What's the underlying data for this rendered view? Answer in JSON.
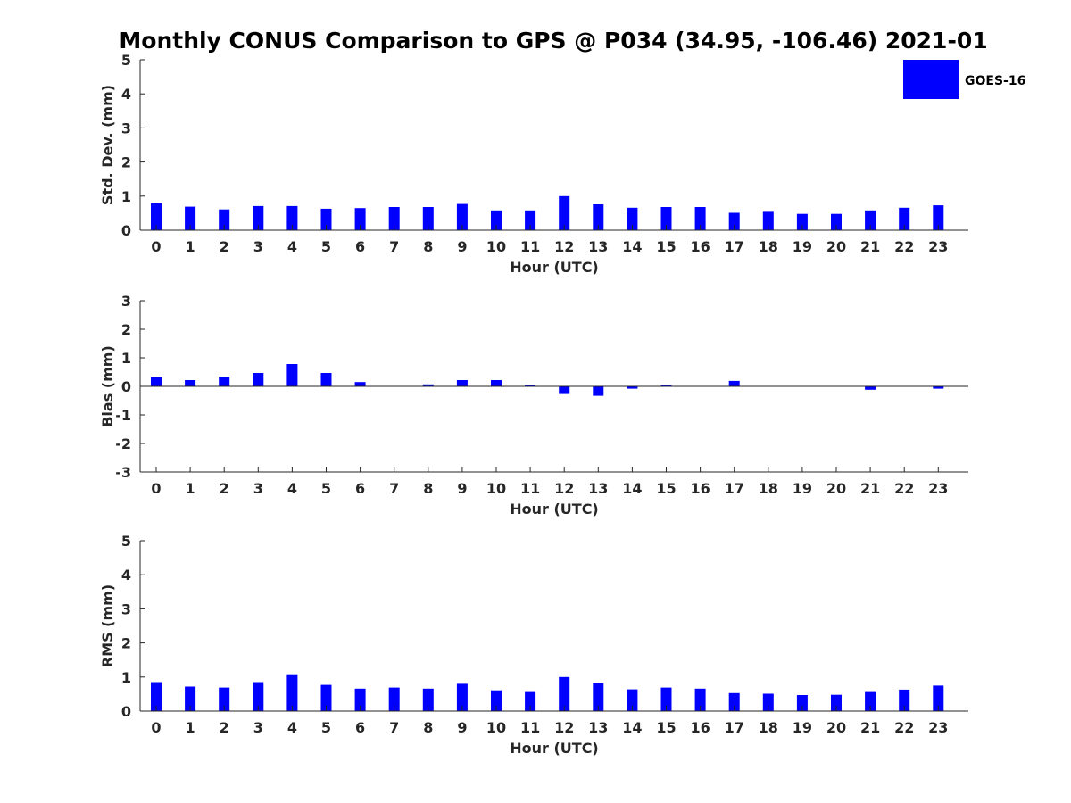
{
  "chart_data": {
    "type": "bar",
    "title": "Monthly CONUS Comparison to GPS @ P034 (34.95, -106.46) 2021-01",
    "legend": {
      "entries": [
        "GOES-16"
      ],
      "placement": "top-right",
      "color": "#0000ff"
    },
    "categories": [
      "0",
      "1",
      "2",
      "3",
      "4",
      "5",
      "6",
      "7",
      "8",
      "9",
      "10",
      "11",
      "12",
      "13",
      "14",
      "15",
      "16",
      "17",
      "18",
      "19",
      "20",
      "21",
      "22",
      "23"
    ],
    "panels": [
      {
        "name": "std-dev",
        "ylabel": "Std. Dev. (mm)",
        "xlabel": "Hour (UTC)",
        "ylim": [
          0,
          5
        ],
        "yticks": [
          "0",
          "1",
          "2",
          "3",
          "4",
          "5"
        ],
        "series": [
          {
            "name": "GOES-16",
            "values": [
              0.79,
              0.69,
              0.61,
              0.71,
              0.71,
              0.63,
              0.65,
              0.68,
              0.68,
              0.77,
              0.58,
              0.58,
              1.0,
              0.76,
              0.66,
              0.68,
              0.68,
              0.51,
              0.54,
              0.48,
              0.48,
              0.58,
              0.66,
              0.73
            ]
          }
        ]
      },
      {
        "name": "bias",
        "ylabel": "Bias (mm)",
        "xlabel": "Hour (UTC)",
        "ylim": [
          -3,
          3
        ],
        "yticks": [
          "-3",
          "-2",
          "-1",
          "0",
          "1",
          "2",
          "3"
        ],
        "series": [
          {
            "name": "GOES-16",
            "values": [
              0.32,
              0.22,
              0.34,
              0.47,
              0.78,
              0.47,
              0.15,
              0.0,
              0.07,
              0.22,
              0.22,
              0.04,
              -0.27,
              -0.33,
              -0.08,
              0.04,
              0.0,
              0.19,
              0.0,
              0.0,
              0.0,
              -0.12,
              0.0,
              -0.08
            ]
          }
        ]
      },
      {
        "name": "rms",
        "ylabel": "RMS (mm)",
        "xlabel": "Hour (UTC)",
        "ylim": [
          0,
          5
        ],
        "yticks": [
          "0",
          "1",
          "2",
          "3",
          "4",
          "5"
        ],
        "series": [
          {
            "name": "GOES-16",
            "values": [
              0.85,
              0.72,
              0.69,
              0.85,
              1.08,
              0.77,
              0.66,
              0.69,
              0.66,
              0.8,
              0.61,
              0.56,
              1.0,
              0.82,
              0.64,
              0.69,
              0.66,
              0.53,
              0.51,
              0.47,
              0.48,
              0.56,
              0.63,
              0.75
            ]
          }
        ]
      }
    ]
  }
}
